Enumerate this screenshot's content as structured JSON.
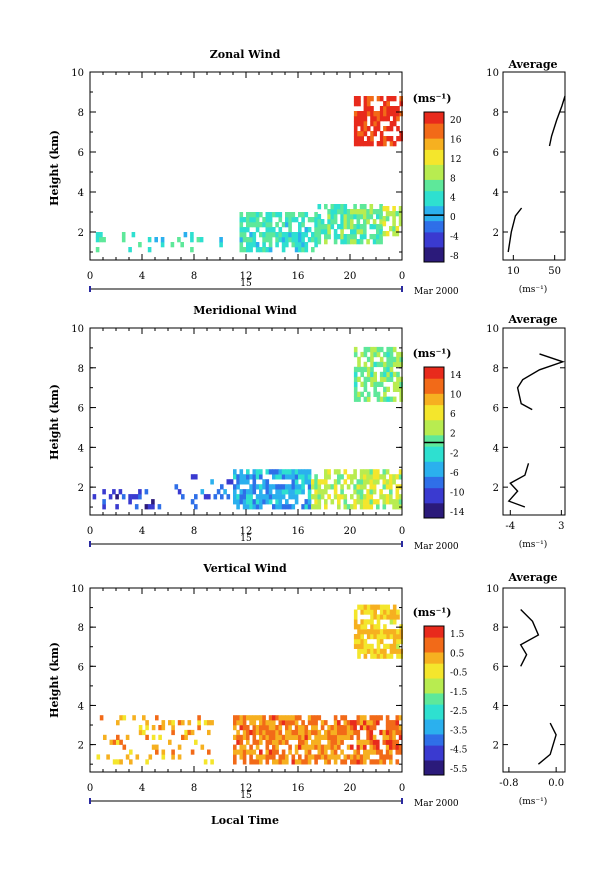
{
  "date_label": "Mar 2000",
  "x_axis_label": "Local Time",
  "day_label": "15",
  "y_axis_label": "Height (km)",
  "unit_label": "(ms⁻¹)",
  "average_title": "Average",
  "colors": {
    "ramp": [
      "#2b1a7a",
      "#3a3ad0",
      "#2f6fe8",
      "#2bb0ee",
      "#2ee0d0",
      "#5ee89a",
      "#b8ec50",
      "#f4e62c",
      "#f6b020",
      "#f26a18",
      "#e82a1c"
    ]
  },
  "chart_data": [
    {
      "type": "heatmap",
      "name": "zonal",
      "title": "Zonal Wind",
      "ylabel": "Height (km)",
      "xlim": [
        0,
        24
      ],
      "ylim": [
        0.6,
        10
      ],
      "x_ticks": [
        "0",
        "4",
        "8",
        "12",
        "16",
        "20",
        "0"
      ],
      "y_ticks": [
        "2",
        "4",
        "6",
        "8",
        "10"
      ],
      "colorbar": {
        "labels": [
          "20",
          "16",
          "12",
          "8",
          "4",
          "0",
          "-4",
          "-8"
        ],
        "range": [
          -10,
          22
        ],
        "contour": 0
      },
      "regions": [
        {
          "x0": 20.3,
          "x1": 24,
          "y0": 6.3,
          "y1": 8.8,
          "v": 21
        },
        {
          "x0": 11.5,
          "x1": 17.5,
          "y0": 1.0,
          "y1": 2.9,
          "v": 4
        },
        {
          "x0": 17.5,
          "x1": 22.5,
          "y0": 1.4,
          "y1": 3.2,
          "v": 6
        },
        {
          "x0": 22.5,
          "x1": 24,
          "y0": 1.8,
          "y1": 3.2,
          "v": 9
        },
        {
          "x0": 0.2,
          "x1": 10,
          "y0": 1.0,
          "y1": 2.0,
          "v": 4
        }
      ],
      "average": {
        "xlim": [
          0,
          60
        ],
        "x_ticks": [
          "10",
          "50"
        ],
        "y_ticks": [
          "2",
          "4",
          "6",
          "8",
          "10"
        ],
        "points": [
          [
            5,
            1.0
          ],
          [
            8,
            2.0
          ],
          [
            12,
            2.8
          ],
          [
            18,
            3.2
          ],
          [
            45,
            6.3
          ],
          [
            47,
            6.8
          ],
          [
            52,
            7.6
          ],
          [
            57,
            8.3
          ],
          [
            60,
            8.8
          ]
        ]
      }
    },
    {
      "type": "heatmap",
      "name": "meridional",
      "title": "Meridional Wind",
      "ylabel": "Height (km)",
      "xlim": [
        0,
        24
      ],
      "ylim": [
        0.6,
        10
      ],
      "x_ticks": [
        "0",
        "4",
        "8",
        "12",
        "16",
        "20",
        "0"
      ],
      "y_ticks": [
        "2",
        "4",
        "6",
        "8",
        "10"
      ],
      "colorbar": {
        "labels": [
          "14",
          "10",
          "6",
          "2",
          "-2",
          "-6",
          "-10",
          "-14"
        ],
        "range": [
          -16,
          16
        ],
        "contour": 0
      },
      "regions": [
        {
          "x0": 20.3,
          "x1": 24,
          "y0": 6.3,
          "y1": 8.9,
          "v": 1
        },
        {
          "x0": 0.2,
          "x1": 6.5,
          "y0": 0.9,
          "y1": 1.9,
          "v": -11
        },
        {
          "x0": 6.5,
          "x1": 11,
          "y0": 0.9,
          "y1": 2.6,
          "v": -9
        },
        {
          "x0": 11,
          "x1": 17,
          "y0": 0.9,
          "y1": 2.9,
          "v": -6
        },
        {
          "x0": 17,
          "x1": 24,
          "y0": 0.9,
          "y1": 2.9,
          "v": 3
        }
      ],
      "average": {
        "xlim": [
          -5,
          3.5
        ],
        "x_ticks": [
          "-4",
          "3"
        ],
        "y_ticks": [
          "2",
          "4",
          "6",
          "8",
          "10"
        ],
        "points": [
          [
            -2,
            1.0
          ],
          [
            -4.2,
            1.3
          ],
          [
            -3,
            1.8
          ],
          [
            -4,
            2.2
          ],
          [
            -2,
            2.6
          ],
          [
            -1.5,
            3.2
          ],
          [
            -1,
            5.9
          ],
          [
            -2.5,
            6.2
          ],
          [
            -3,
            7.0
          ],
          [
            -2.3,
            7.4
          ],
          [
            0,
            7.9
          ],
          [
            3.2,
            8.3
          ],
          [
            0,
            8.7
          ]
        ]
      }
    },
    {
      "type": "heatmap",
      "name": "vertical",
      "title": "Vertical Wind",
      "ylabel": "Height (km)",
      "xlabel": "Local Time",
      "xlim": [
        0,
        24
      ],
      "ylim": [
        0.6,
        10
      ],
      "x_ticks": [
        "0",
        "4",
        "8",
        "12",
        "16",
        "20",
        "0"
      ],
      "y_ticks": [
        "2",
        "4",
        "6",
        "8",
        "10"
      ],
      "colorbar": {
        "labels": [
          "1.5",
          "0.5",
          "-0.5",
          "-1.5",
          "-2.5",
          "-3.5",
          "-4.5",
          "-5.5"
        ],
        "range": [
          -6,
          2
        ],
        "contour": null
      },
      "regions": [
        {
          "x0": 20.3,
          "x1": 24,
          "y0": 6.4,
          "y1": 9.0,
          "v": -0.2
        },
        {
          "x0": 11,
          "x1": 20,
          "y0": 1.0,
          "y1": 3.3,
          "v": 0.6
        },
        {
          "x0": 20,
          "x1": 24,
          "y0": 1.0,
          "y1": 3.3,
          "v": 0.9
        },
        {
          "x0": 0.5,
          "x1": 9.5,
          "y0": 1.0,
          "y1": 3.3,
          "v": 0.2
        }
      ],
      "average": {
        "xlim": [
          -0.9,
          0.15
        ],
        "x_ticks": [
          "-0.8",
          "0.0"
        ],
        "y_ticks": [
          "2",
          "4",
          "6",
          "8",
          "10"
        ],
        "points": [
          [
            -0.3,
            1.0
          ],
          [
            -0.1,
            1.5
          ],
          [
            0.0,
            2.5
          ],
          [
            -0.1,
            3.1
          ],
          [
            -0.6,
            6.0
          ],
          [
            -0.5,
            6.6
          ],
          [
            -0.6,
            7.1
          ],
          [
            -0.3,
            7.6
          ],
          [
            -0.4,
            8.3
          ],
          [
            -0.6,
            8.9
          ]
        ]
      }
    }
  ]
}
